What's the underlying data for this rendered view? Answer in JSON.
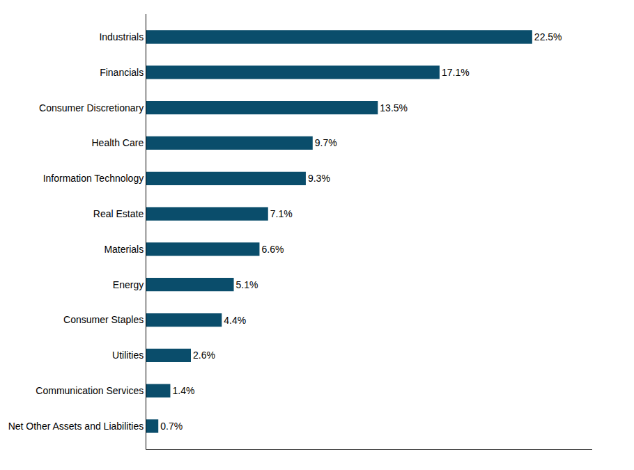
{
  "chart_data": {
    "type": "bar",
    "orientation": "horizontal",
    "categories": [
      "Net Other Assets and Liabilities",
      "Communication Services",
      "Utilities",
      "Consumer Staples",
      "Energy",
      "Materials",
      "Real Estate",
      "Information Technology",
      "Health Care",
      "Consumer Discretionary",
      "Financials",
      "Industrials"
    ],
    "values": [
      0.7,
      1.4,
      2.6,
      4.4,
      5.1,
      6.6,
      7.1,
      9.3,
      9.7,
      13.5,
      17.1,
      22.5
    ],
    "value_labels": [
      "0.7%",
      "1.4%",
      "2.6%",
      "4.4%",
      "5.1%",
      "6.6%",
      "7.1%",
      "9.3%",
      "9.7%",
      "13.5%",
      "17.1%",
      "22.5%"
    ],
    "data_labels": true,
    "color": "#0a4d6b",
    "xlim": [
      0,
      26
    ],
    "tick_labels": "y",
    "grid": false
  }
}
